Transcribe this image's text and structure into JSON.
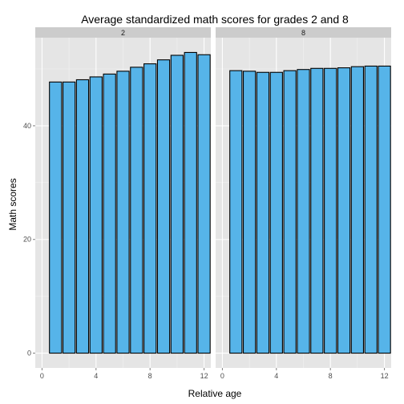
{
  "chart_data": {
    "type": "bar",
    "title": "Average standardized math scores for grades 2 and 8",
    "xlabel": "Relative age",
    "ylabel": "Math scores",
    "xlim": [
      -0.5,
      12.5
    ],
    "ylim": [
      -2.6,
      55.5
    ],
    "xticks": [
      0,
      4,
      8,
      12
    ],
    "yticks": [
      0,
      20,
      40
    ],
    "grid": true,
    "bar_color": "#56B4E9",
    "bar_outline": "#000000",
    "panel_background": "#E5E5E5",
    "strip_background": "#CCCCCC",
    "panels": [
      {
        "label": "2",
        "x": [
          1,
          2,
          3,
          4,
          5,
          6,
          7,
          8,
          9,
          10,
          11,
          12
        ],
        "values": [
          47.7,
          47.7,
          48.1,
          48.6,
          49.1,
          49.6,
          50.3,
          50.9,
          51.6,
          52.4,
          52.9,
          52.5
        ]
      },
      {
        "label": "8",
        "x": [
          1,
          2,
          3,
          4,
          5,
          6,
          7,
          8,
          9,
          10,
          11,
          12
        ],
        "values": [
          49.7,
          49.6,
          49.4,
          49.4,
          49.7,
          49.9,
          50.1,
          50.1,
          50.2,
          50.4,
          50.5,
          50.5
        ]
      }
    ]
  }
}
